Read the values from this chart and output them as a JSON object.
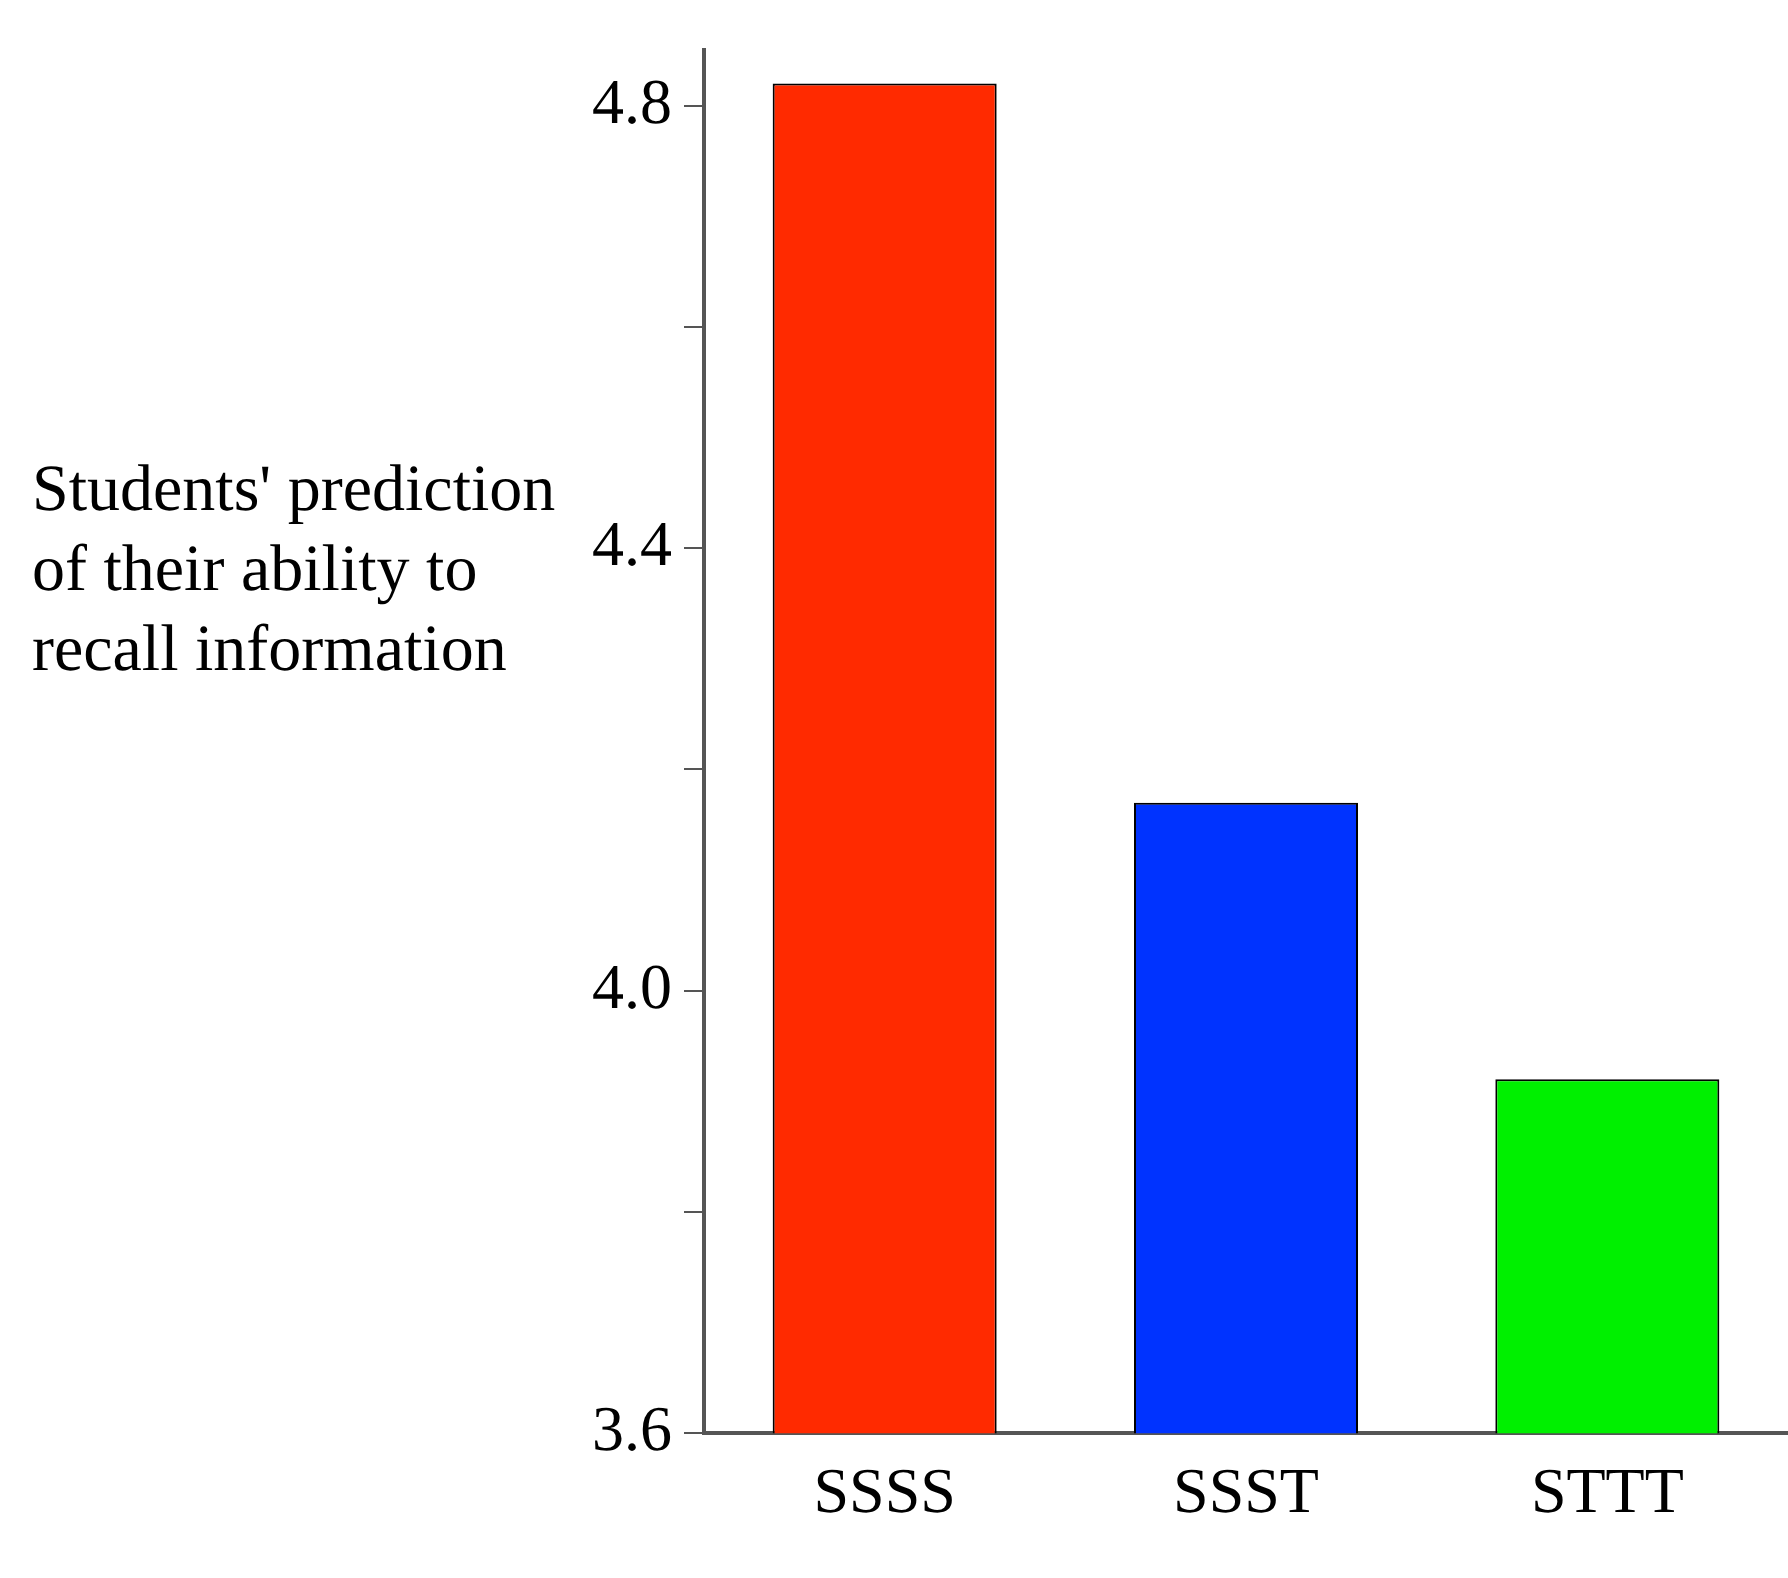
{
  "chart_data": {
    "type": "bar",
    "ylabel": "Students' prediction of their ability to recall information",
    "categories": [
      "SSSS",
      "SSST",
      "STTT"
    ],
    "values": [
      4.82,
      4.17,
      3.92
    ],
    "colors": [
      "#ff2a00",
      "#0033ff",
      "#00f000"
    ],
    "ylim": [
      3.6,
      4.85
    ],
    "yticks": [
      {
        "value": 3.6,
        "label": "3.6"
      },
      {
        "value": 3.8,
        "label": null
      },
      {
        "value": 4.0,
        "label": "4.0"
      },
      {
        "value": 4.2,
        "label": null
      },
      {
        "value": 4.4,
        "label": "4.4"
      },
      {
        "value": 4.6,
        "label": null
      },
      {
        "value": 4.8,
        "label": "4.8"
      }
    ],
    "grid": false,
    "legend": false
  }
}
